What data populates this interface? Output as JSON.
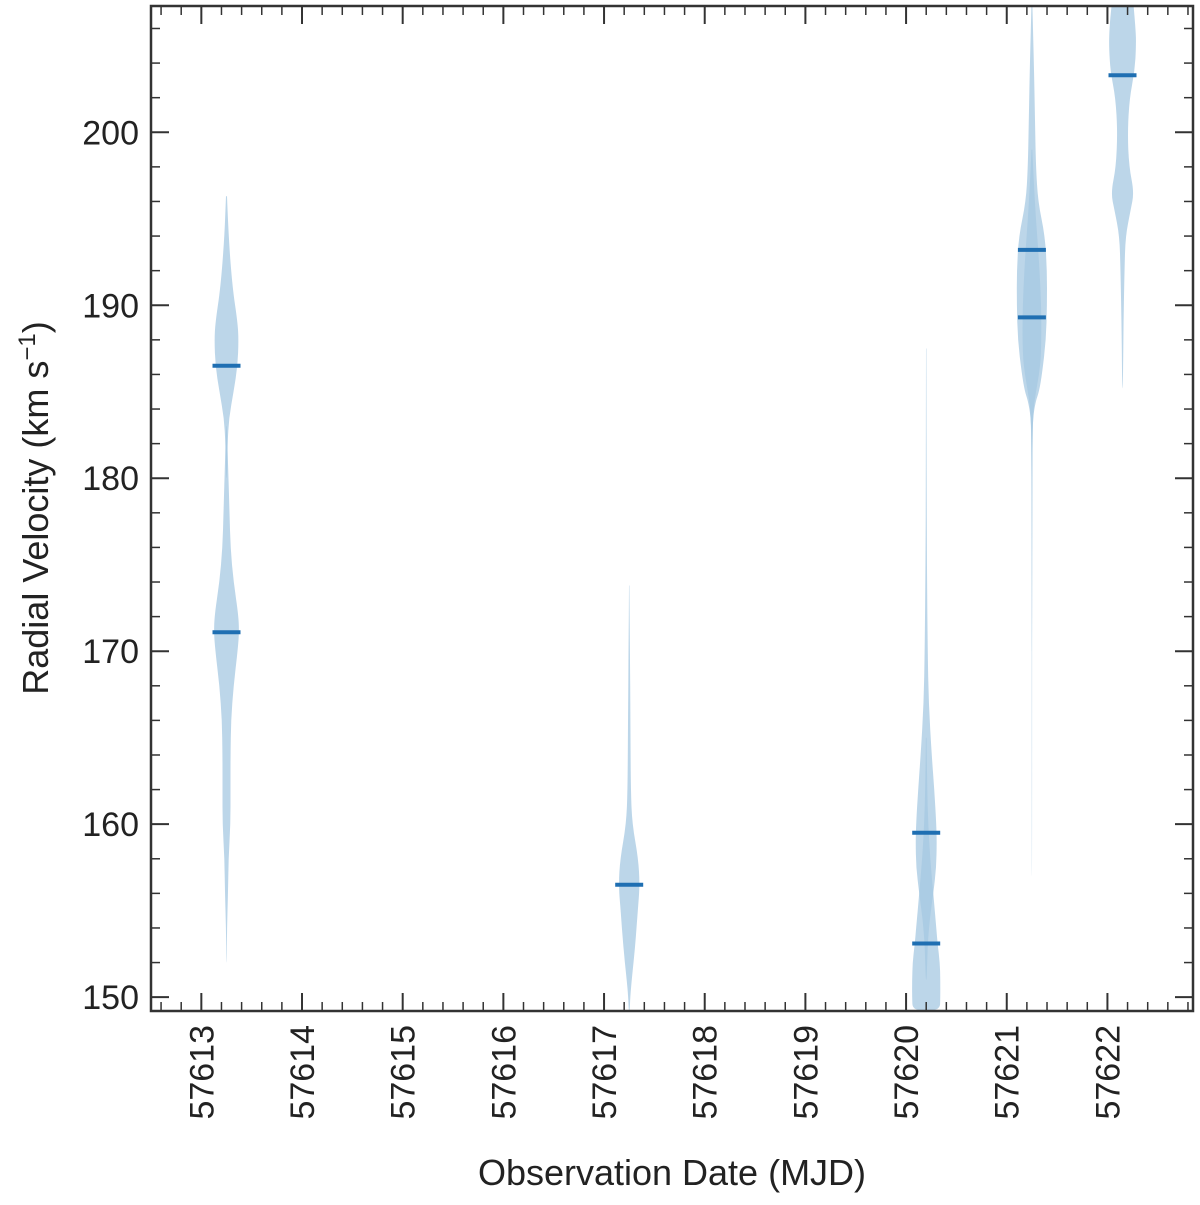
{
  "chart_data": {
    "type": "violin",
    "xlabel": "Observation Date (MJD)",
    "ylabel_text": "Radial Velocity (km s",
    "ylabel_sup": "−1",
    "ylabel_close": ")",
    "xlim": [
      57612.5,
      57622.85
    ],
    "ylim": [
      149.2,
      207.3
    ],
    "x_ticks": [
      57613,
      57614,
      57615,
      57616,
      57617,
      57618,
      57619,
      57620,
      57621,
      57622
    ],
    "x_tick_labels": [
      "57613",
      "57614",
      "57615",
      "57616",
      "57617",
      "57618",
      "57619",
      "57620",
      "57621",
      "57622"
    ],
    "y_ticks": [
      150,
      160,
      170,
      180,
      190,
      200
    ],
    "y_tick_labels": [
      "150",
      "160",
      "170",
      "180",
      "190",
      "200"
    ],
    "grid": false,
    "colors": {
      "fill": "#a6c8e2",
      "median": "#1f6fb2",
      "axis": "#333333"
    },
    "series": [
      {
        "x": 57613.25,
        "components": [
          {
            "median": 186.5,
            "profile": [
              [
                196.3,
                0.005
              ],
              [
                194,
                0.02
              ],
              [
                191,
                0.06
              ],
              [
                189,
                0.11
              ],
              [
                188,
                0.12
              ],
              [
                186.5,
                0.11
              ],
              [
                185,
                0.07
              ],
              [
                183.5,
                0.025
              ],
              [
                182,
                0.01
              ],
              [
                180,
                0.005
              ]
            ]
          },
          {
            "median": 171.1,
            "profile": [
              [
                183,
                0.003
              ],
              [
                180,
                0.02
              ],
              [
                178,
                0.03
              ],
              [
                176,
                0.04
              ],
              [
                174,
                0.07
              ],
              [
                172,
                0.12
              ],
              [
                171,
                0.125
              ],
              [
                170,
                0.11
              ],
              [
                168,
                0.07
              ],
              [
                166,
                0.045
              ],
              [
                164,
                0.04
              ],
              [
                162,
                0.04
              ],
              [
                160,
                0.04
              ],
              [
                158,
                0.02
              ],
              [
                156,
                0.015
              ],
              [
                154,
                0.005
              ],
              [
                152,
                0.002
              ]
            ]
          }
        ]
      },
      {
        "x": 57617.25,
        "components": [
          {
            "median": 156.5,
            "profile": [
              [
                173.8,
                0.002
              ],
              [
                170,
                0.007
              ],
              [
                166,
                0.012
              ],
              [
                162,
                0.016
              ],
              [
                160,
                0.03
              ],
              [
                158,
                0.09
              ],
              [
                156.5,
                0.105
              ],
              [
                155,
                0.085
              ],
              [
                153,
                0.06
              ],
              [
                151,
                0.025
              ],
              [
                150,
                0.01
              ],
              [
                149.2,
                0.005
              ]
            ]
          }
        ]
      },
      {
        "x": 57620.2,
        "components": [
          {
            "median": 159.5,
            "profile": [
              [
                187.5,
                0.002
              ],
              [
                180,
                0.004
              ],
              [
                175,
                0.007
              ],
              [
                170,
                0.015
              ],
              [
                167,
                0.025
              ],
              [
                164,
                0.055
              ],
              [
                162,
                0.08
              ],
              [
                160,
                0.1
              ],
              [
                159,
                0.105
              ],
              [
                157.5,
                0.1
              ],
              [
                156,
                0.07
              ],
              [
                154.5,
                0.035
              ],
              [
                153,
                0.015
              ],
              [
                152,
                0.01
              ],
              [
                151,
                0.004
              ]
            ]
          },
          {
            "median": 153.1,
            "profile": [
              [
                165,
                0.003
              ],
              [
                162,
                0.01
              ],
              [
                160,
                0.02
              ],
              [
                158,
                0.04
              ],
              [
                156,
                0.07
              ],
              [
                154,
                0.1
              ],
              [
                153,
                0.115
              ],
              [
                152,
                0.135
              ],
              [
                151,
                0.14
              ],
              [
                150,
                0.14
              ],
              [
                149.2,
                0.135
              ]
            ]
          }
        ]
      },
      {
        "x": 57621.25,
        "components": [
          {
            "median": 193.2,
            "profile": [
              [
                207.3,
                0.005
              ],
              [
                204,
                0.02
              ],
              [
                201,
                0.03
              ],
              [
                198,
                0.04
              ],
              [
                196,
                0.06
              ],
              [
                194,
                0.13
              ],
              [
                192,
                0.15
              ],
              [
                190,
                0.15
              ],
              [
                188,
                0.14
              ],
              [
                186,
                0.1
              ],
              [
                185,
                0.07
              ],
              [
                184.5,
                0.04
              ],
              [
                183.5,
                0.01
              ],
              [
                182,
                0.005
              ],
              [
                172,
                0.002
              ],
              [
                157,
                0.002
              ]
            ]
          },
          {
            "median": 189.3,
            "profile": [
              [
                199,
                0.004
              ],
              [
                197,
                0.02
              ],
              [
                195,
                0.04
              ],
              [
                193,
                0.065
              ],
              [
                191,
                0.085
              ],
              [
                189,
                0.095
              ],
              [
                187,
                0.09
              ],
              [
                186,
                0.07
              ],
              [
                185,
                0.04
              ],
              [
                184,
                0.015
              ],
              [
                182,
                0.005
              ],
              [
                176,
                0.002
              ],
              [
                170,
                0.001
              ]
            ]
          }
        ]
      },
      {
        "x": 57622.15,
        "components": [
          {
            "median": 203.3,
            "profile": [
              [
                207.3,
                0.11
              ],
              [
                206,
                0.13
              ],
              [
                205,
                0.135
              ],
              [
                203.5,
                0.12
              ],
              [
                202,
                0.07
              ],
              [
                200,
                0.05
              ],
              [
                198,
                0.065
              ],
              [
                196.5,
                0.115
              ],
              [
                195.5,
                0.08
              ],
              [
                194,
                0.03
              ],
              [
                192,
                0.02
              ],
              [
                189,
                0.01
              ],
              [
                186,
                0.005
              ],
              [
                185.2,
                0.002
              ]
            ]
          }
        ]
      }
    ]
  }
}
